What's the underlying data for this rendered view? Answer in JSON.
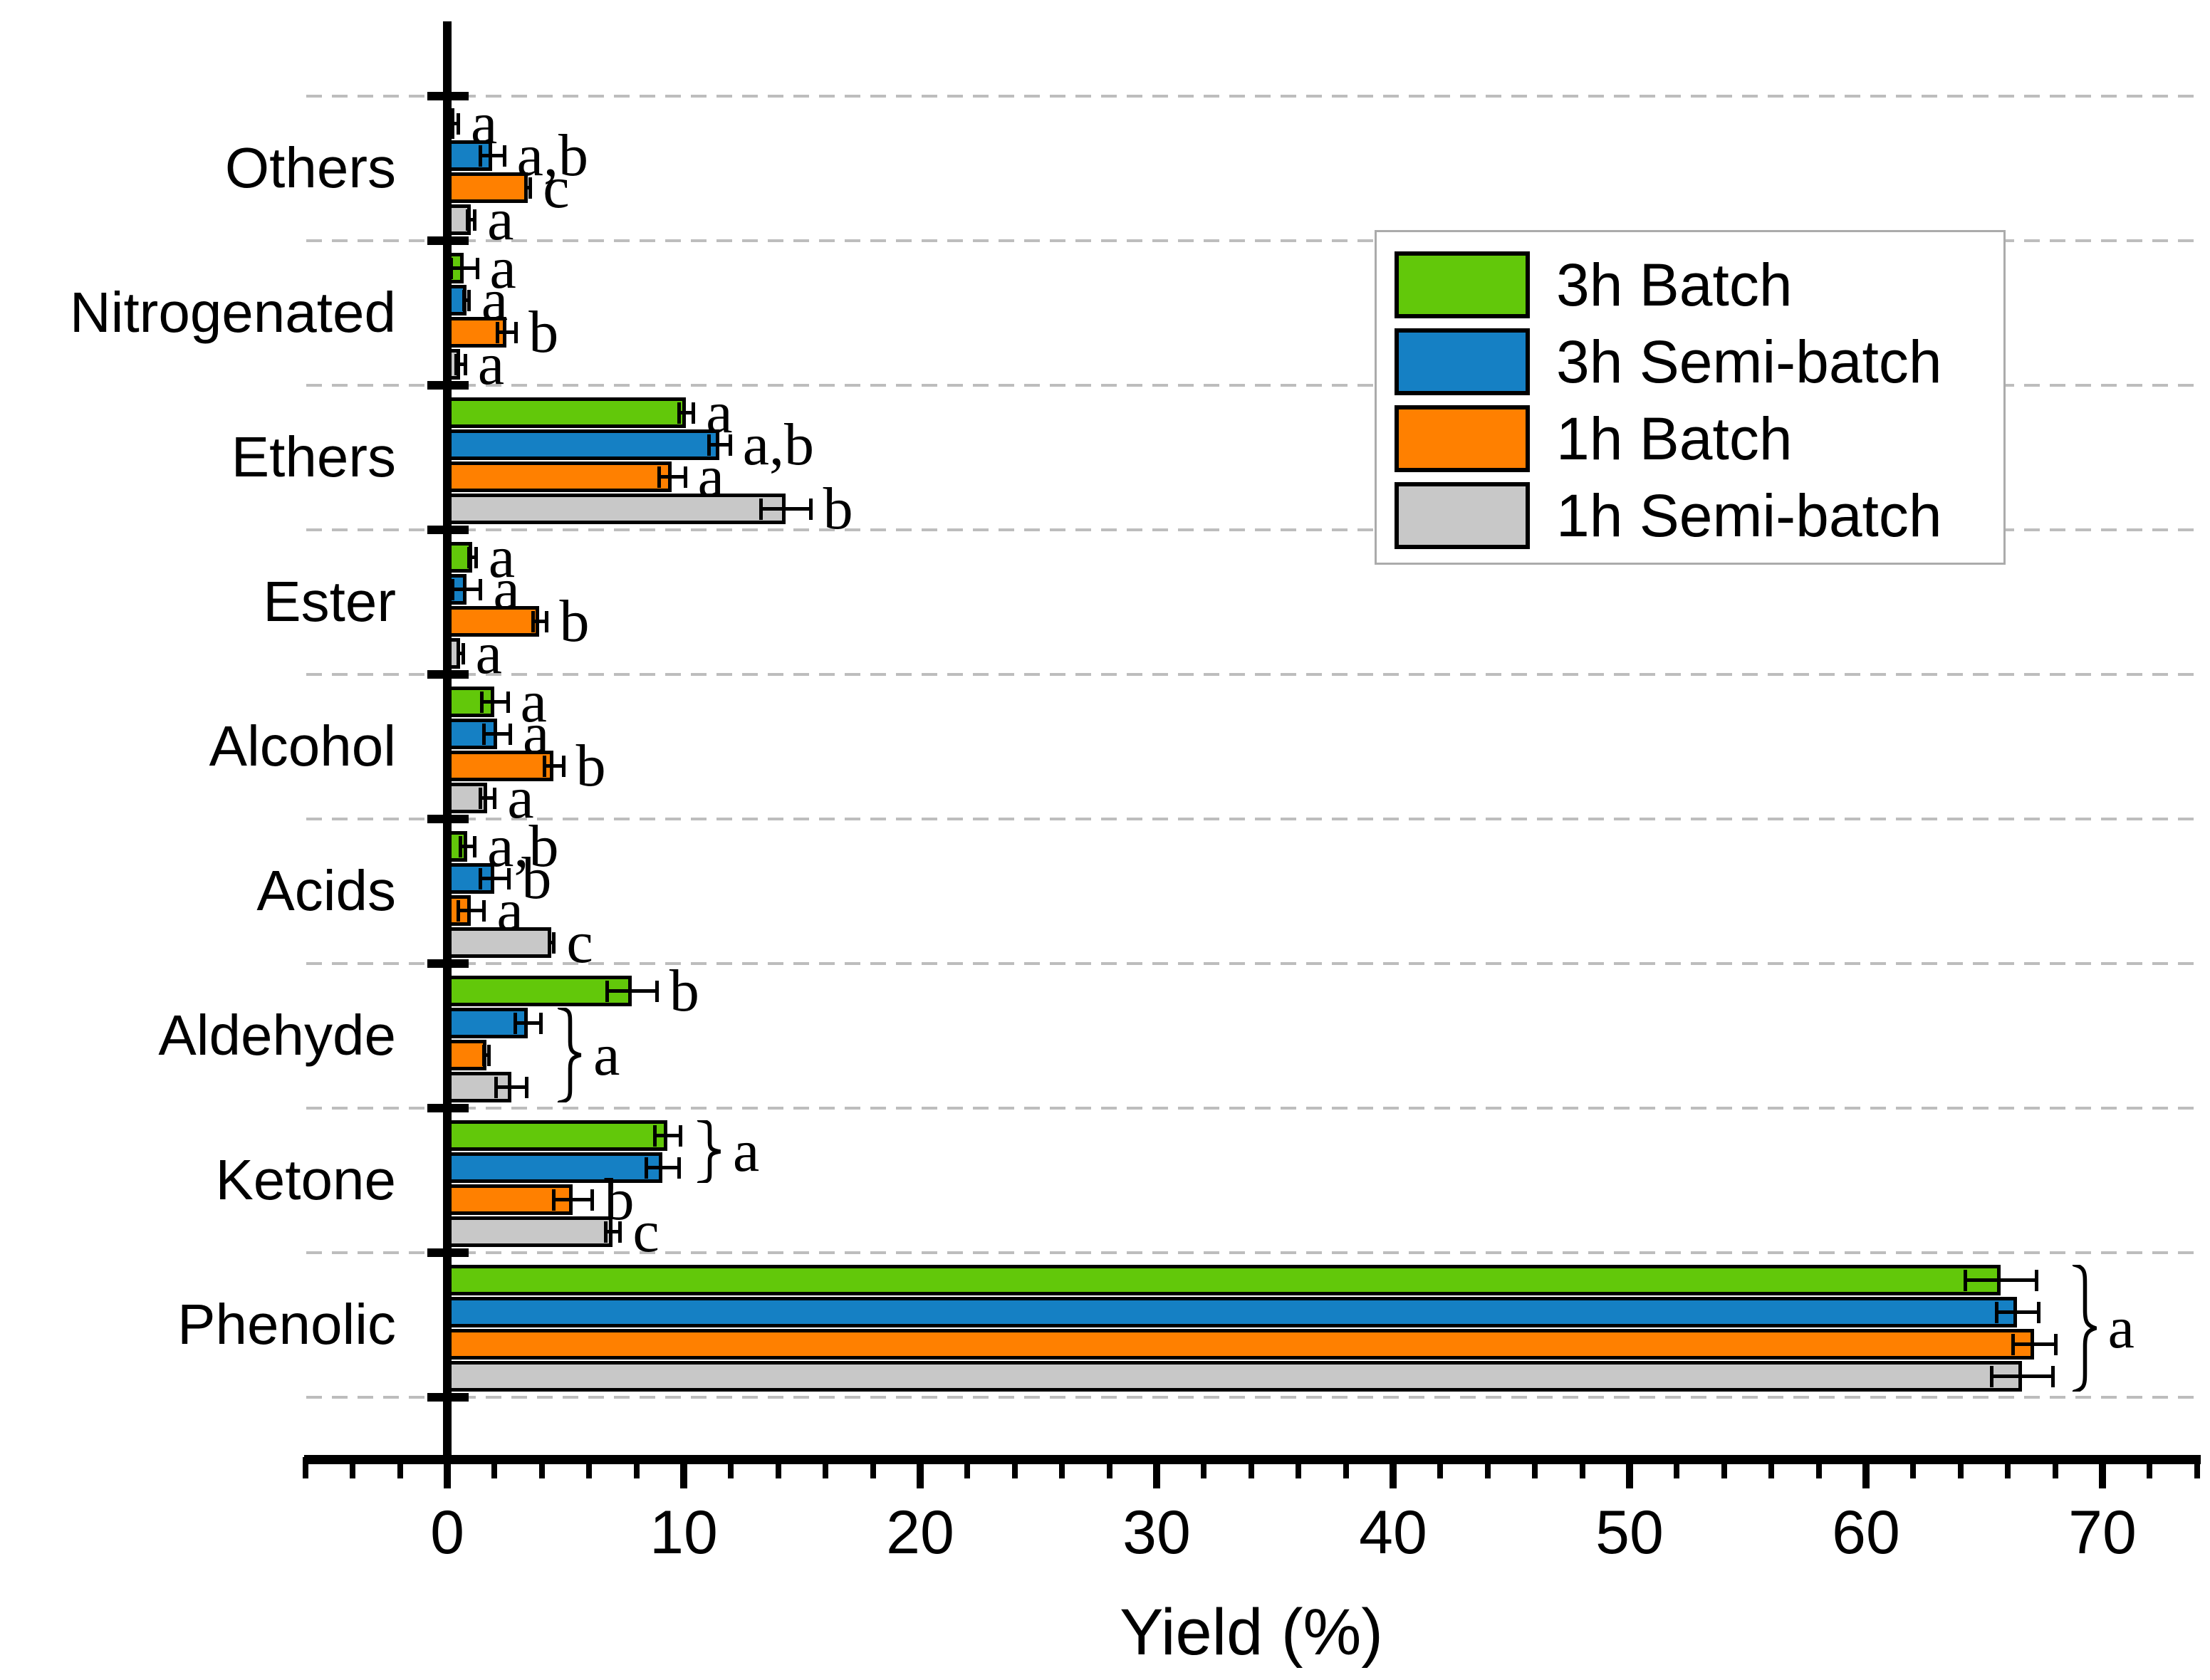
{
  "chart_data": {
    "type": "bar",
    "orientation": "horizontal",
    "title": "",
    "xlabel": "Yield (%)",
    "ylabel": "",
    "axis_range": [
      -6,
      74
    ],
    "x_major_ticks": [
      0,
      10,
      20,
      30,
      40,
      50,
      60,
      70
    ],
    "x_minor_step": 2,
    "grid": "dashed-horizontal-between-categories",
    "grid_color": "#BDBDBD",
    "axis_color": "#000000",
    "categories": [
      "Others",
      "Nitrogenated",
      "Ethers",
      "Ester",
      "Alcohol",
      "Acids",
      "Aldehyde",
      "Ketone",
      "Phenolic"
    ],
    "series": [
      {
        "name": "3h Batch",
        "color": "#62C80A",
        "values": [
          0.3,
          0.7,
          10.1,
          1.05,
          2.0,
          0.85,
          7.8,
          9.3,
          65.7
        ],
        "errors": [
          0.15,
          0.55,
          0.3,
          0.15,
          0.55,
          0.3,
          1.05,
          0.55,
          1.5
        ],
        "sig_labels": [
          "a",
          "a",
          "a",
          "a",
          "a",
          "a,b",
          "b",
          "",
          ""
        ]
      },
      {
        "name": "3h Semi-batch",
        "color": "#1580C4",
        "values": [
          1.9,
          0.8,
          11.5,
          0.8,
          2.1,
          2.0,
          3.4,
          9.1,
          66.4
        ],
        "errors": [
          0.5,
          0.1,
          0.45,
          0.6,
          0.55,
          0.6,
          0.55,
          0.7,
          0.9
        ],
        "sig_labels": [
          "a,b",
          "a",
          "a,b",
          "a",
          "a",
          "b",
          "",
          "",
          ""
        ]
      },
      {
        "name": "1h Batch",
        "color": "#FF8000",
        "values": [
          3.4,
          2.5,
          9.5,
          3.9,
          4.5,
          1.0,
          1.65,
          5.3,
          67.1
        ],
        "errors": [
          0.1,
          0.4,
          0.55,
          0.3,
          0.4,
          0.55,
          0.1,
          0.8,
          0.9
        ],
        "sig_labels": [
          "c",
          "b",
          "a",
          "b",
          "b",
          "a",
          "",
          "b",
          ""
        ]
      },
      {
        "name": "1h Semi-batch",
        "color": "#C8C8C8",
        "values": [
          1.0,
          0.55,
          14.3,
          0.55,
          1.7,
          4.4,
          2.7,
          7.0,
          66.6
        ],
        "errors": [
          0.15,
          0.2,
          1.05,
          0.1,
          0.3,
          0.1,
          0.65,
          0.3,
          1.3
        ],
        "sig_labels": [
          "a",
          "a",
          "b",
          "a",
          "a",
          "c",
          "",
          "c",
          ""
        ]
      }
    ],
    "group_braces": [
      {
        "category_index": 6,
        "from_series": 1,
        "to_series": 3,
        "label": "a"
      },
      {
        "category_index": 7,
        "from_series": 0,
        "to_series": 1,
        "label": "a"
      },
      {
        "category_index": 8,
        "from_series": 0,
        "to_series": 3,
        "label": "a"
      }
    ],
    "legend": {
      "position": "upper-right",
      "entries": [
        "3h Batch",
        "3h Semi-batch",
        "1h Batch",
        "1h Semi-batch"
      ]
    }
  }
}
